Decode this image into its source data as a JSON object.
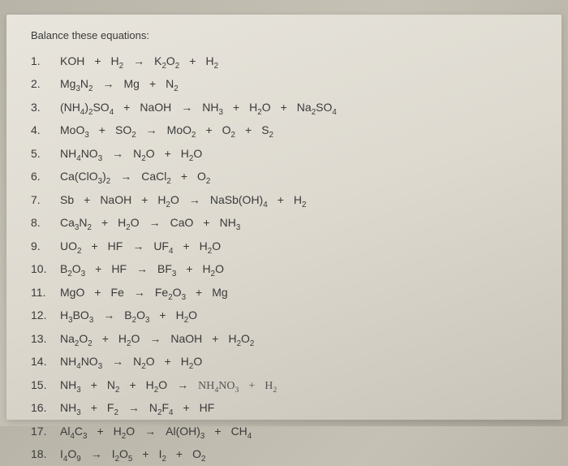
{
  "title": "Balance these equations:",
  "background_gradient": [
    "#b8b4a8",
    "#c5c1b5",
    "#a8a498"
  ],
  "paper_gradient": [
    "#e8e5dd",
    "#ddd9cf",
    "#c8c4ba"
  ],
  "text_color": "#3a3a3a",
  "title_fontsize": 13,
  "equation_fontsize": 14,
  "equations": [
    {
      "num": "1.",
      "parts": [
        "KOH",
        "+",
        "H₂",
        "→",
        "K₂O₂",
        "+",
        "H₂"
      ]
    },
    {
      "num": "2.",
      "parts": [
        "Mg₃N₂",
        "→",
        "Mg",
        "+",
        "N₂"
      ]
    },
    {
      "num": "3.",
      "parts": [
        "(NH₄)₂SO₄",
        "+",
        "NaOH",
        "→",
        "NH₃",
        "+",
        "H₂O",
        "+",
        "Na₂SO₄"
      ]
    },
    {
      "num": "4.",
      "parts": [
        "MoO₃",
        "+",
        "SO₂",
        "→",
        "MoO₂",
        "+",
        "O₂",
        "+",
        "S₂"
      ]
    },
    {
      "num": "5.",
      "parts": [
        "NH₄NO₃",
        "→",
        "N₂O",
        "+",
        "H₂O"
      ]
    },
    {
      "num": "6.",
      "parts": [
        "Ca(ClO₃)₂",
        "→",
        "CaCl₂",
        "+",
        "O₂"
      ]
    },
    {
      "num": "7.",
      "parts": [
        "Sb",
        "+",
        "NaOH",
        "+",
        "H₂O",
        "→",
        "NaSb(OH)₄",
        "+",
        "H₂"
      ]
    },
    {
      "num": "8.",
      "parts": [
        "Ca₃N₂",
        "+",
        "H₂O",
        "→",
        "CaO",
        "+",
        "NH₃"
      ]
    },
    {
      "num": "9.",
      "parts": [
        "UO₂",
        "+",
        "HF",
        "→",
        "UF₄",
        "+",
        "H₂O"
      ]
    },
    {
      "num": "10.",
      "parts": [
        "B₂O₃",
        "+",
        "HF",
        "→",
        "BF₃",
        "+",
        "H₂O"
      ]
    },
    {
      "num": "11.",
      "parts": [
        "MgO",
        "+",
        "Fe",
        "→",
        "Fe₂O₃",
        "+",
        "Mg"
      ]
    },
    {
      "num": "12.",
      "parts": [
        "H₃BO₃",
        "→",
        "B₂O₃",
        "+",
        "H₂O"
      ]
    },
    {
      "num": "13.",
      "parts": [
        "Na₂O₂",
        "+",
        "H₂O",
        "→",
        "NaOH",
        "+",
        "H₂O₂"
      ]
    },
    {
      "num": "14.",
      "parts": [
        "NH₄NO₃",
        "→",
        "N₂O",
        "+",
        "H₂O"
      ]
    },
    {
      "num": "15.",
      "parts": [
        "NH₃",
        "+",
        "N₂",
        "+",
        "H₂O",
        "→",
        "NH₄NO₃",
        "+",
        "H₂"
      ],
      "handwritten_from": 6
    },
    {
      "num": "16.",
      "parts": [
        "NH₃",
        "+",
        "F₂",
        "→",
        "N₂F₄",
        "+",
        "HF"
      ]
    },
    {
      "num": "17.",
      "parts": [
        "Al₄C₃",
        "+",
        "H₂O",
        "→",
        "Al(OH)₃",
        "+",
        "CH₄"
      ]
    },
    {
      "num": "18.",
      "parts": [
        "I₄O₉",
        "→",
        "I₂O₅",
        "+",
        "I₂",
        "+",
        "O₂"
      ]
    }
  ]
}
